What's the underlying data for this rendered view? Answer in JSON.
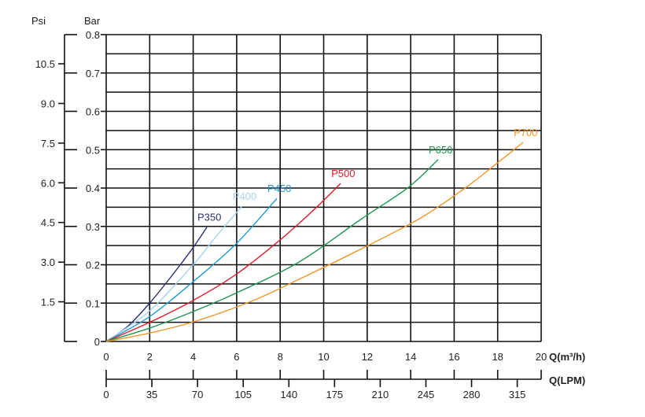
{
  "chart_data": {
    "type": "line",
    "title": "",
    "xlabel": "Q(m³/h)",
    "xlabel_secondary": "Q(LPM)",
    "ylabel": "Bar",
    "ylabel_secondary": "Psi",
    "xlim": [
      0,
      20
    ],
    "ylim": [
      0,
      0.8
    ],
    "grid": true,
    "x_ticks": [
      "0",
      "2",
      "4",
      "6",
      "8",
      "10",
      "12",
      "14",
      "16",
      "18",
      "20"
    ],
    "x2_ticks": [
      "0",
      "35",
      "70",
      "105",
      "140",
      "175",
      "210",
      "245",
      "280",
      "315"
    ],
    "y_ticks": [
      "0",
      "0.1",
      "0.2",
      "0.3",
      "0.4",
      "0.5",
      "0.6",
      "0.7",
      "0.8"
    ],
    "y2_ticks": [
      "1.5",
      "3.0",
      "4.5",
      "6.0",
      "7.5",
      "9.0",
      "10.5"
    ],
    "series": [
      {
        "name": "P350",
        "color": "#2b2f7a",
        "points": [
          [
            0,
            0
          ],
          [
            1,
            0.04
          ],
          [
            2,
            0.1
          ],
          [
            3,
            0.17
          ],
          [
            4,
            0.245
          ],
          [
            4.63,
            0.298
          ]
        ]
      },
      {
        "name": "P400",
        "color": "#a8d4ee",
        "points": [
          [
            0,
            0
          ],
          [
            2,
            0.08
          ],
          [
            4,
            0.2
          ],
          [
            5,
            0.27
          ],
          [
            6.25,
            0.353
          ]
        ]
      },
      {
        "name": "P450",
        "color": "#1f9ad6",
        "points": [
          [
            0,
            0
          ],
          [
            2,
            0.065
          ],
          [
            4,
            0.156
          ],
          [
            6,
            0.256
          ],
          [
            7.85,
            0.373
          ]
        ]
      },
      {
        "name": "P500",
        "color": "#d9202e",
        "points": [
          [
            0,
            0
          ],
          [
            2,
            0.05
          ],
          [
            4,
            0.107
          ],
          [
            6,
            0.176
          ],
          [
            8,
            0.265
          ],
          [
            9.58,
            0.345
          ],
          [
            10.78,
            0.412
          ]
        ]
      },
      {
        "name": "P650",
        "color": "#1e9650",
        "points": [
          [
            0,
            0
          ],
          [
            2,
            0.035
          ],
          [
            4,
            0.078
          ],
          [
            6,
            0.127
          ],
          [
            8.86,
            0.207
          ],
          [
            11.75,
            0.32
          ],
          [
            13.9,
            0.402
          ],
          [
            15.26,
            0.474
          ]
        ]
      },
      {
        "name": "P700",
        "color": "#f0962a",
        "points": [
          [
            0,
            0
          ],
          [
            2,
            0.022
          ],
          [
            4,
            0.051
          ],
          [
            6.6,
            0.103
          ],
          [
            8.86,
            0.162
          ],
          [
            11.5,
            0.235
          ],
          [
            14.4,
            0.32
          ],
          [
            16.5,
            0.4
          ],
          [
            18,
            0.466
          ],
          [
            19.17,
            0.519
          ]
        ]
      }
    ]
  }
}
